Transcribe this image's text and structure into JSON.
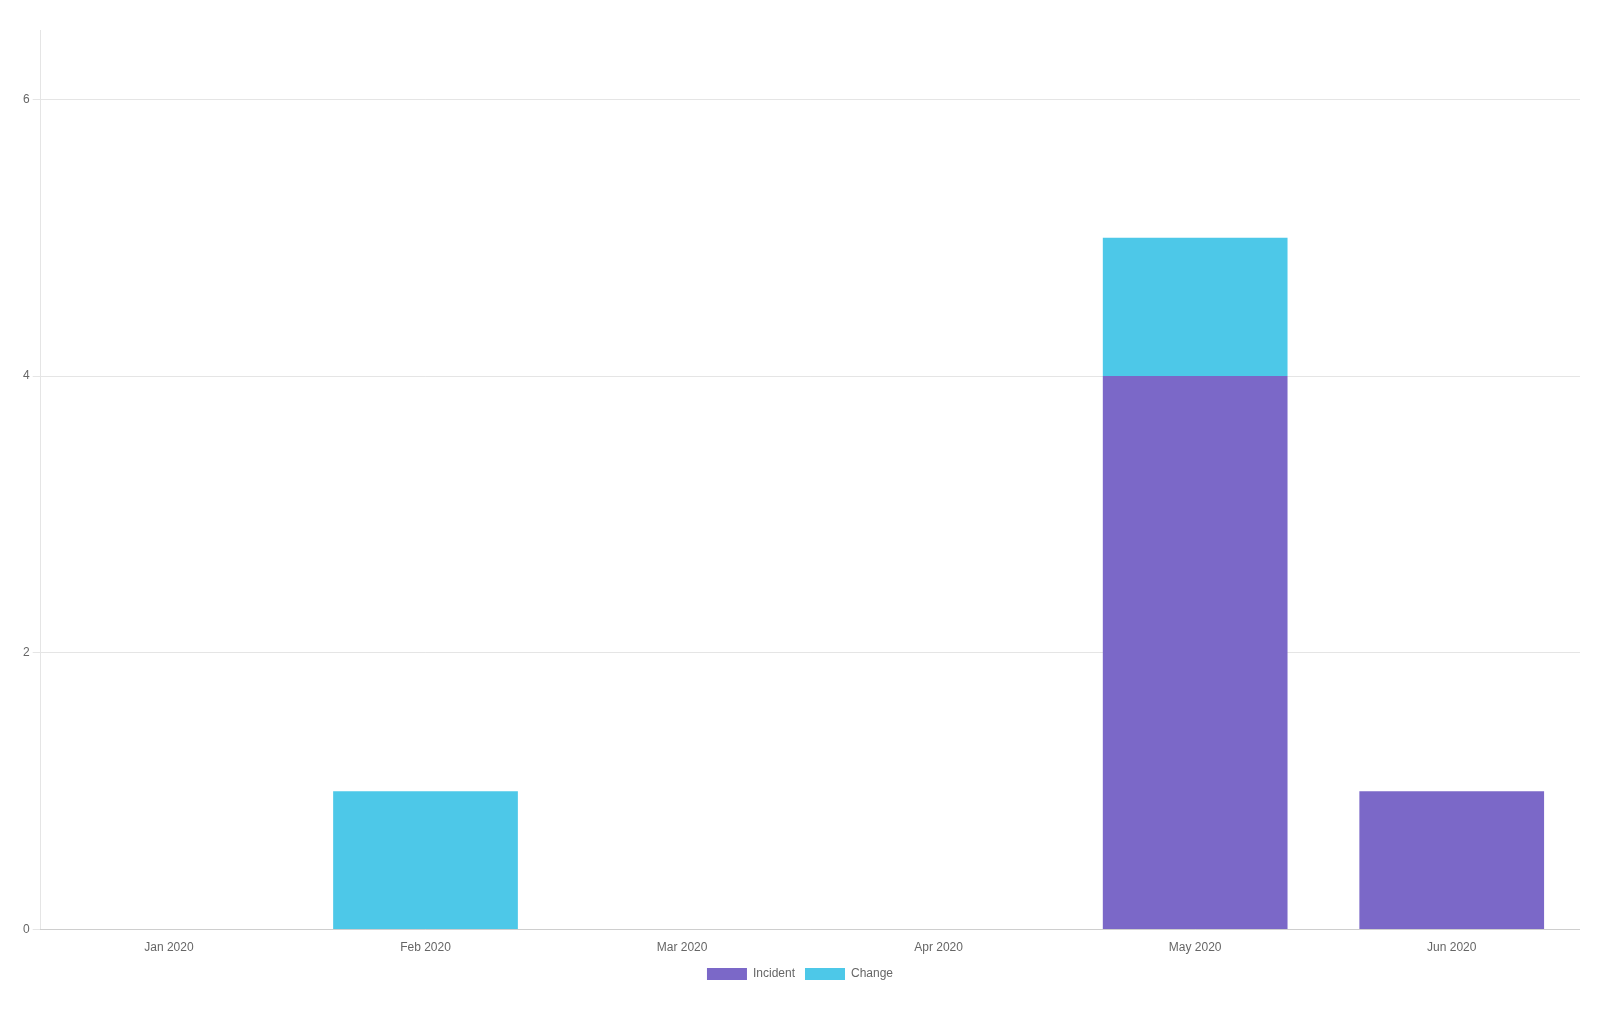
{
  "chart_data": {
    "type": "bar",
    "categories": [
      "Jan 2020",
      "Feb 2020",
      "Mar 2020",
      "Apr 2020",
      "May 2020",
      "Jun 2020"
    ],
    "series": [
      {
        "name": "Incident",
        "color": "#7B68C8",
        "values": [
          0,
          0,
          0,
          0,
          4,
          1
        ]
      },
      {
        "name": "Change",
        "color": "#4DC8E8",
        "values": [
          0,
          1,
          0,
          0,
          1,
          0
        ]
      }
    ],
    "stacked": true,
    "ylim": [
      0,
      6.5
    ],
    "yticks": [
      0,
      2,
      4,
      6
    ],
    "grid": true,
    "legend": "bottom"
  }
}
